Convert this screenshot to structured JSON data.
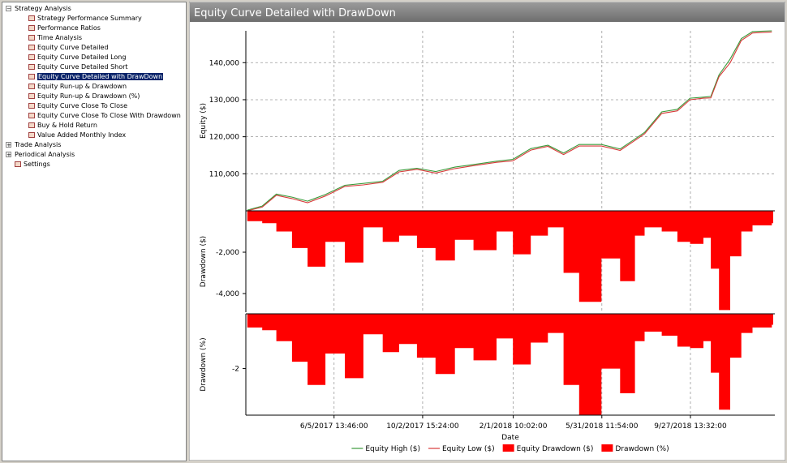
{
  "tree": [
    {
      "label": "Strategy Analysis",
      "expanded": true,
      "children": [
        {
          "label": "Strategy Performance Summary"
        },
        {
          "label": "Performance Ratios"
        },
        {
          "label": "Time Analysis"
        },
        {
          "label": "Equity Curve Detailed"
        },
        {
          "label": "Equity Curve Detailed Long"
        },
        {
          "label": "Equity Curve Detailed Short"
        },
        {
          "label": "Equity Curve Detailed with DrawDown",
          "selected": true
        },
        {
          "label": "Equity Run-up & Drawdown"
        },
        {
          "label": "Equity Run-up & Drawdown (%)"
        },
        {
          "label": "Equity Curve Close To Close"
        },
        {
          "label": "Equity Curve Close To Close With Drawdown"
        },
        {
          "label": "Buy & Hold Return"
        },
        {
          "label": "Value Added Monthly Index"
        }
      ]
    },
    {
      "label": "Trade Analysis",
      "expanded": false
    },
    {
      "label": "Periodical Analysis",
      "expanded": false
    },
    {
      "label": "Settings"
    }
  ],
  "panel_title": "Equity Curve Detailed with DrawDown",
  "chart_data": [
    {
      "type": "line",
      "y_label": "Equity ($)",
      "grid": true,
      "legend": "bottom",
      "xlim": [
        "2/7/2017",
        "1/19/2019"
      ],
      "ylim": [
        100000,
        148600
      ],
      "yticks": [
        {
          "value": 110000,
          "label": "110,000"
        },
        {
          "value": 120000,
          "label": "120,000"
        },
        {
          "value": 130000,
          "label": "130,000"
        },
        {
          "value": 140000,
          "label": "140,000"
        }
      ],
      "x": [
        "2/9/2017",
        "3/1/2017",
        "3/20/2017",
        "4/10/2017",
        "5/1/2017",
        "5/25/2017",
        "6/20/2017",
        "7/15/2017",
        "8/10/2017",
        "9/1/2017",
        "9/25/2017",
        "10/20/2017",
        "11/15/2017",
        "12/10/2017",
        "1/10/2018",
        "2/1/2018",
        "2/25/2018",
        "3/20/2018",
        "4/10/2018",
        "5/1/2018",
        "5/31/2018",
        "6/25/2018",
        "7/15/2018",
        "7/28/2018",
        "8/20/2018",
        "9/10/2018",
        "9/27/2018",
        "10/15/2018",
        "10/25/2018",
        "11/5/2018",
        "11/20/2018",
        "12/5/2018",
        "12/20/2018",
        "1/15/2019"
      ],
      "series": [
        {
          "name": "Equity High ($)",
          "color": "#3a9a3a",
          "values": [
            100200,
            101300,
            104500,
            103700,
            102600,
            104400,
            106900,
            107400,
            108000,
            110900,
            111500,
            110600,
            111800,
            112500,
            113400,
            113900,
            116800,
            117700,
            115600,
            117900,
            117900,
            116700,
            119400,
            121200,
            126700,
            127400,
            130400,
            130700,
            130900,
            136700,
            141000,
            146500,
            148400,
            148600
          ]
        },
        {
          "name": "Equity Low ($)",
          "color": "#d83a3a",
          "values": [
            100000,
            101000,
            104200,
            103300,
            102200,
            104000,
            106600,
            107000,
            107700,
            110500,
            111200,
            110200,
            111400,
            112200,
            113100,
            113500,
            116400,
            117400,
            115200,
            117500,
            117500,
            116300,
            119000,
            120800,
            126300,
            127000,
            130000,
            130400,
            130500,
            136200,
            140000,
            146000,
            148000,
            148300
          ]
        }
      ]
    },
    {
      "type": "area",
      "y_label": "Drawdown ($)",
      "grid": true,
      "xlim": [
        "2/7/2017",
        "1/19/2019"
      ],
      "ylim": [
        -4900,
        0
      ],
      "yticks": [
        {
          "value": -4000,
          "label": "-4,000"
        },
        {
          "value": -2000,
          "label": "-2,000"
        }
      ],
      "x": [
        "2/9/2017",
        "3/1/2017",
        "3/20/2017",
        "4/10/2017",
        "5/1/2017",
        "5/25/2017",
        "6/20/2017",
        "7/15/2017",
        "8/10/2017",
        "9/1/2017",
        "9/25/2017",
        "10/20/2017",
        "11/15/2017",
        "12/10/2017",
        "1/10/2018",
        "2/1/2018",
        "2/25/2018",
        "3/20/2018",
        "4/10/2018",
        "5/1/2018",
        "5/31/2018",
        "6/25/2018",
        "7/15/2018",
        "7/28/2018",
        "8/20/2018",
        "9/10/2018",
        "9/27/2018",
        "10/15/2018",
        "10/25/2018",
        "11/5/2018",
        "11/20/2018",
        "12/5/2018",
        "12/20/2018",
        "1/15/2019"
      ],
      "series": [
        {
          "name": "Equity Drawdown ($)",
          "color": "#ff0000",
          "values": [
            -500,
            -600,
            -1000,
            -1800,
            -2700,
            -1500,
            -2500,
            -800,
            -1500,
            -1200,
            -1800,
            -2400,
            -1400,
            -1900,
            -1000,
            -2100,
            -1200,
            -800,
            -3000,
            -4400,
            -2300,
            -3400,
            -1200,
            -800,
            -1000,
            -1500,
            -1600,
            -1300,
            -2800,
            -4800,
            -2200,
            -1000,
            -700,
            -600
          ]
        }
      ]
    },
    {
      "type": "area",
      "y_label": "Drawdown (%)",
      "x_label": "Date",
      "grid": true,
      "xlim": [
        "2/7/2017",
        "1/19/2019"
      ],
      "ylim": [
        -3.7,
        0
      ],
      "yticks": [
        -2
      ],
      "xticks": [
        "6/5/2017 13:46:00",
        "10/2/2017 15:24:00",
        "2/1/2018 10:02:00",
        "5/31/2018 11:54:00",
        "9/27/2018 13:32:00"
      ],
      "x": [
        "2/9/2017",
        "3/1/2017",
        "3/20/2017",
        "4/10/2017",
        "5/1/2017",
        "5/25/2017",
        "6/20/2017",
        "7/15/2017",
        "8/10/2017",
        "9/1/2017",
        "9/25/2017",
        "10/20/2017",
        "11/15/2017",
        "12/10/2017",
        "1/10/2018",
        "2/1/2018",
        "2/25/2018",
        "3/20/2018",
        "4/10/2018",
        "5/1/2018",
        "5/31/2018",
        "6/25/2018",
        "7/15/2018",
        "7/28/2018",
        "8/20/2018",
        "9/10/2018",
        "9/27/2018",
        "10/15/2018",
        "10/25/2018",
        "11/5/2018",
        "11/20/2018",
        "12/5/2018",
        "12/20/2018",
        "1/15/2019"
      ],
      "series": [
        {
          "name": "Drawdown (%)",
          "color": "#ff0000",
          "values": [
            -0.5,
            -0.6,
            -1.0,
            -1.75,
            -2.6,
            -1.45,
            -2.35,
            -0.75,
            -1.4,
            -1.1,
            -1.6,
            -2.2,
            -1.25,
            -1.7,
            -0.9,
            -1.85,
            -1.05,
            -0.7,
            -2.6,
            -3.7,
            -2.0,
            -2.9,
            -1.0,
            -0.65,
            -0.8,
            -1.2,
            -1.25,
            -1.0,
            -2.15,
            -3.5,
            -1.6,
            -0.7,
            -0.5,
            -0.4
          ]
        }
      ]
    }
  ]
}
